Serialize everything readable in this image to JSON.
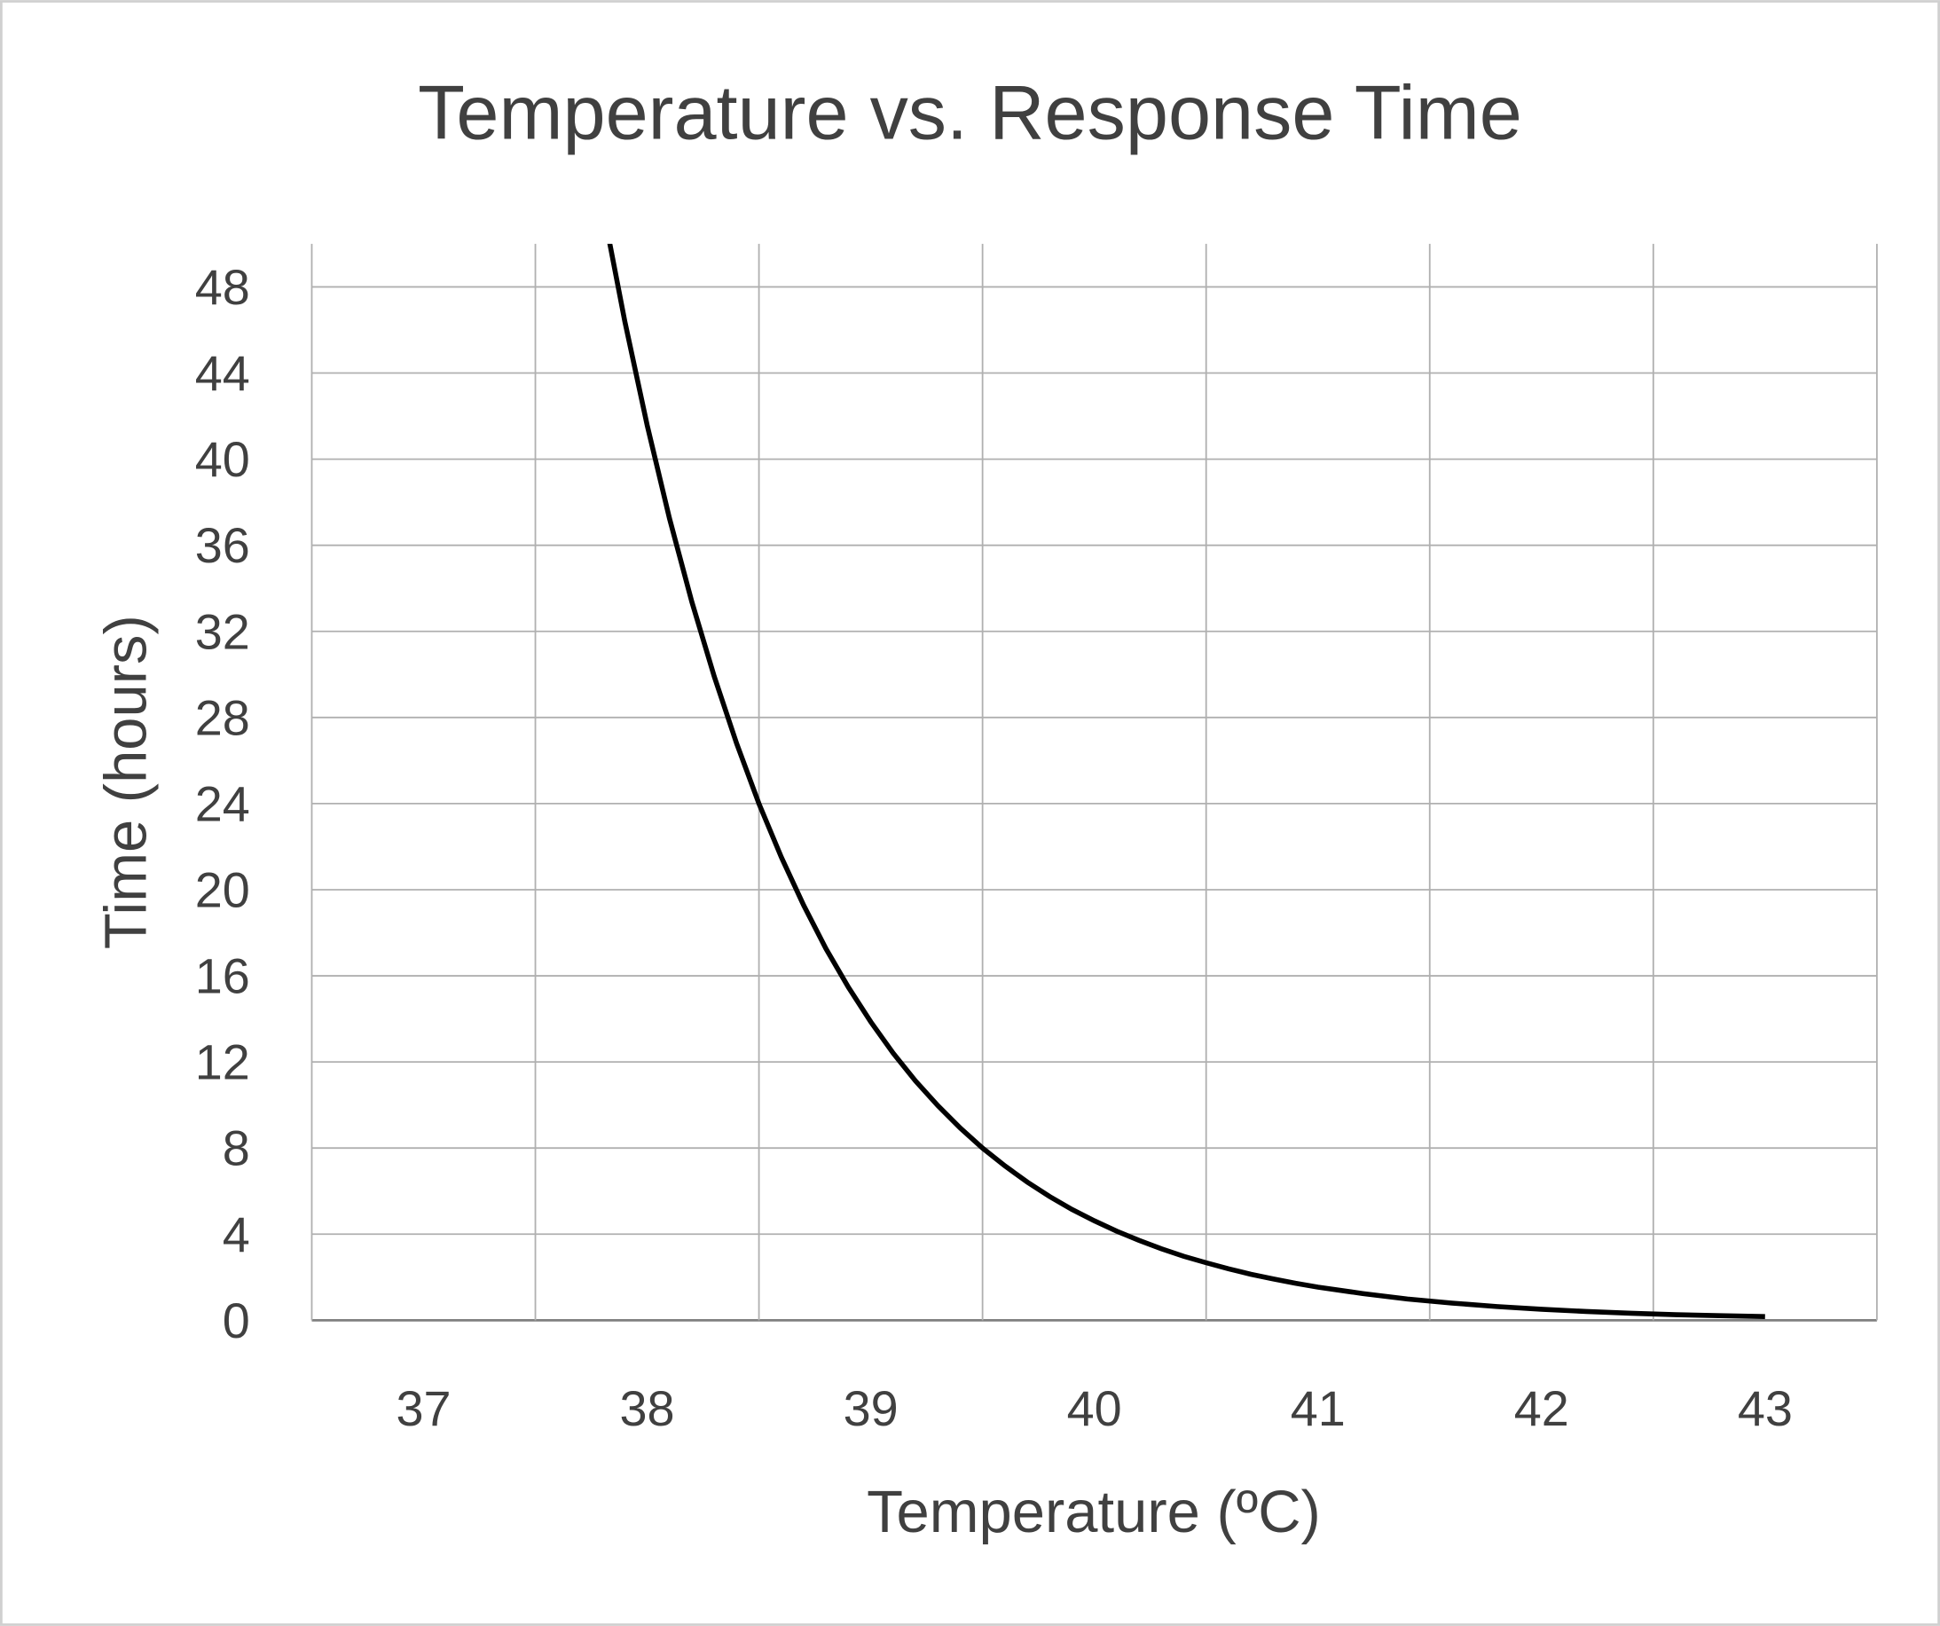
{
  "chart_data": {
    "type": "line",
    "title": "Temperature vs. Response Time",
    "xlabel": "Temperature (ºC)",
    "ylabel": "Time (hours)",
    "categories": [
      "37",
      "38",
      "39",
      "40",
      "41",
      "42",
      "43"
    ],
    "xlim": [
      36.5,
      43.5
    ],
    "ylim": [
      0,
      50
    ],
    "yticks": [
      0,
      4,
      8,
      12,
      16,
      20,
      24,
      28,
      32,
      36,
      40,
      44,
      48
    ],
    "grid": true,
    "legend": "none",
    "line_color": "#000000",
    "series": [
      {
        "x": [
          37.8,
          37.9,
          38.0,
          38.1,
          38.2,
          38.3,
          38.4,
          38.5,
          38.6,
          38.7,
          38.8,
          38.9,
          39.0,
          39.1,
          39.2,
          39.3,
          39.4,
          39.5,
          39.6,
          39.7,
          39.8,
          39.9,
          40.0,
          40.1,
          40.2,
          40.3,
          40.4,
          40.5,
          40.6,
          40.7,
          40.8,
          40.9,
          41.0,
          41.2,
          41.4,
          41.6,
          41.8,
          42.0,
          42.2,
          42.4,
          42.6,
          42.8,
          43.0
        ],
        "y": [
          51.79,
          46.4,
          41.57,
          37.25,
          33.37,
          29.9,
          26.79,
          24.0,
          21.51,
          19.27,
          17.26,
          15.47,
          13.86,
          12.41,
          11.12,
          9.97,
          8.93,
          8.0,
          7.17,
          6.42,
          5.75,
          5.15,
          4.62,
          4.14,
          3.71,
          3.32,
          2.97,
          2.67,
          2.39,
          2.14,
          1.92,
          1.72,
          1.54,
          1.24,
          0.99,
          0.8,
          0.64,
          0.51,
          0.41,
          0.33,
          0.26,
          0.21,
          0.17
        ]
      }
    ]
  }
}
